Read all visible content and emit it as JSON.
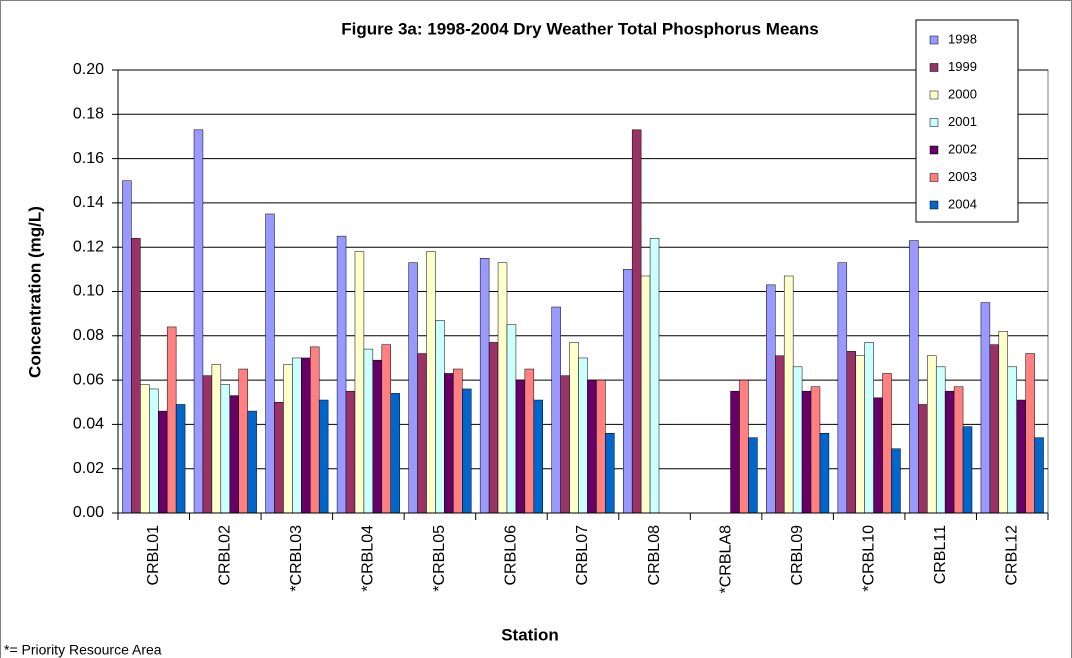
{
  "chart_data": {
    "type": "bar",
    "title": "Figure 3a: 1998-2004 Dry Weather Total Phosphorus Means",
    "x_label": "Station",
    "y_label": "Concentration (mg/L)",
    "footnote": "*= Priority Resource Area",
    "categories": [
      "CRBL01",
      "CRBL02",
      "*CRBL03",
      "*CRBL04",
      "*CRBL05",
      "CRBL06",
      "CRBL07",
      "CRBL08",
      "*CRBLA8",
      "CRBL09",
      "*CRBL10",
      "CRBL11",
      "CRBL12"
    ],
    "series": [
      {
        "name": "1998",
        "color": "#9999ff",
        "values": [
          0.15,
          0.173,
          0.135,
          0.125,
          0.113,
          0.115,
          0.093,
          0.11,
          null,
          0.103,
          0.113,
          0.123,
          0.095
        ]
      },
      {
        "name": "1999",
        "color": "#993366",
        "values": [
          0.124,
          0.062,
          0.05,
          0.055,
          0.072,
          0.077,
          0.062,
          0.173,
          null,
          0.071,
          0.073,
          0.049,
          0.076
        ]
      },
      {
        "name": "2000",
        "color": "#ffffcc",
        "values": [
          0.058,
          0.067,
          0.067,
          0.118,
          0.118,
          0.113,
          0.077,
          0.107,
          null,
          0.107,
          0.071,
          0.071,
          0.082
        ]
      },
      {
        "name": "2001",
        "color": "#ccffff",
        "values": [
          0.056,
          0.058,
          0.07,
          0.074,
          0.087,
          0.085,
          0.07,
          0.124,
          null,
          0.066,
          0.077,
          0.066,
          0.066
        ]
      },
      {
        "name": "2002",
        "color": "#660066",
        "values": [
          0.046,
          0.053,
          0.07,
          0.069,
          0.063,
          0.06,
          0.06,
          null,
          0.055,
          0.055,
          0.052,
          0.055,
          0.051
        ]
      },
      {
        "name": "2003",
        "color": "#ff8080",
        "values": [
          0.084,
          0.065,
          0.075,
          0.076,
          0.065,
          0.065,
          0.06,
          null,
          0.06,
          0.057,
          0.063,
          0.057,
          0.072
        ]
      },
      {
        "name": "2004",
        "color": "#0066cc",
        "values": [
          0.049,
          0.046,
          0.051,
          0.054,
          0.056,
          0.051,
          0.036,
          null,
          0.034,
          0.036,
          0.029,
          0.039,
          0.034
        ]
      }
    ],
    "ylim": [
      0,
      0.2
    ],
    "yticks": [
      {
        "value": 0,
        "label": "0.00"
      },
      {
        "value": 0.02,
        "label": "0.02"
      },
      {
        "value": 0.04,
        "label": "0.04"
      },
      {
        "value": 0.06,
        "label": "0.06"
      },
      {
        "value": 0.08,
        "label": "0.08"
      },
      {
        "value": 0.1,
        "label": "0.10"
      },
      {
        "value": 0.12,
        "label": "0.12"
      },
      {
        "value": 0.14,
        "label": "0.14"
      },
      {
        "value": 0.16,
        "label": "0.16"
      },
      {
        "value": 0.18,
        "label": "0.18"
      },
      {
        "value": 0.2,
        "label": "0.20"
      }
    ],
    "grid": true
  }
}
